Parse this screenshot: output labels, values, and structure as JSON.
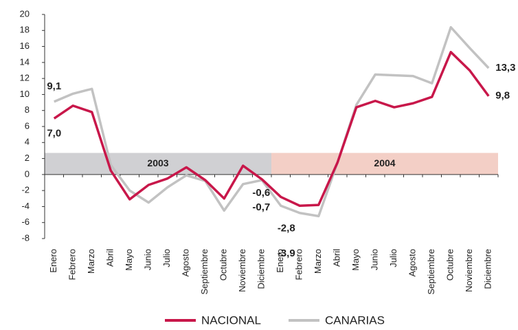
{
  "chart_data": {
    "type": "line",
    "categories": [
      "Enero",
      "Febrero",
      "Marzo",
      "Abril",
      "Mayo",
      "Junio",
      "Julio",
      "Agosto",
      "Septiembre",
      "Octubre",
      "Noviembre",
      "Diciembre",
      "Enero",
      "Febrero",
      "Marzo",
      "Abril",
      "Mayo",
      "Junio",
      "Julio",
      "Agosto",
      "Septiembre",
      "Octubre",
      "Noviembre",
      "Diciembre"
    ],
    "series": [
      {
        "name": "NACIONAL",
        "color": "#c8174a",
        "values": [
          7.0,
          8.6,
          7.8,
          0.5,
          -3.1,
          -1.3,
          -0.5,
          0.9,
          -0.7,
          -3.0,
          1.1,
          -0.6,
          -2.8,
          -3.9,
          -3.8,
          1.5,
          8.4,
          9.2,
          8.4,
          8.9,
          9.7,
          15.3,
          13.0,
          9.8
        ],
        "value_labels": [
          "7,0",
          null,
          null,
          null,
          null,
          null,
          null,
          null,
          null,
          null,
          null,
          "-0,6",
          "-2,8",
          null,
          null,
          null,
          null,
          null,
          null,
          null,
          null,
          null,
          null,
          "9,8"
        ]
      },
      {
        "name": "CANARIAS",
        "color": "#c2c2c2",
        "values": [
          9.1,
          10.1,
          10.7,
          1.2,
          -2.0,
          -3.5,
          -1.6,
          -0.1,
          -0.8,
          -4.5,
          -1.2,
          -0.7,
          -3.9,
          -4.8,
          -5.2,
          1.5,
          8.7,
          12.5,
          12.4,
          12.3,
          11.4,
          18.4,
          15.8,
          13.3
        ],
        "value_labels": [
          "9,1",
          null,
          null,
          null,
          null,
          null,
          null,
          null,
          null,
          null,
          null,
          "-0,7",
          "-3,9",
          null,
          null,
          null,
          null,
          null,
          null,
          null,
          null,
          null,
          null,
          "13,3"
        ]
      }
    ],
    "bands": [
      {
        "label": "2003",
        "span": [
          0,
          11
        ],
        "range": [
          0,
          2.7
        ],
        "color": "#d0d0d3"
      },
      {
        "label": "2004",
        "span": [
          12,
          23
        ],
        "range": [
          0,
          2.7
        ],
        "color": "#f3cfc6"
      }
    ],
    "ylim": [
      -8,
      20
    ],
    "yticks": [
      -8,
      -6,
      -4,
      -2,
      0,
      2,
      4,
      6,
      8,
      10,
      12,
      14,
      16,
      18,
      20
    ],
    "legend": "bottom"
  }
}
